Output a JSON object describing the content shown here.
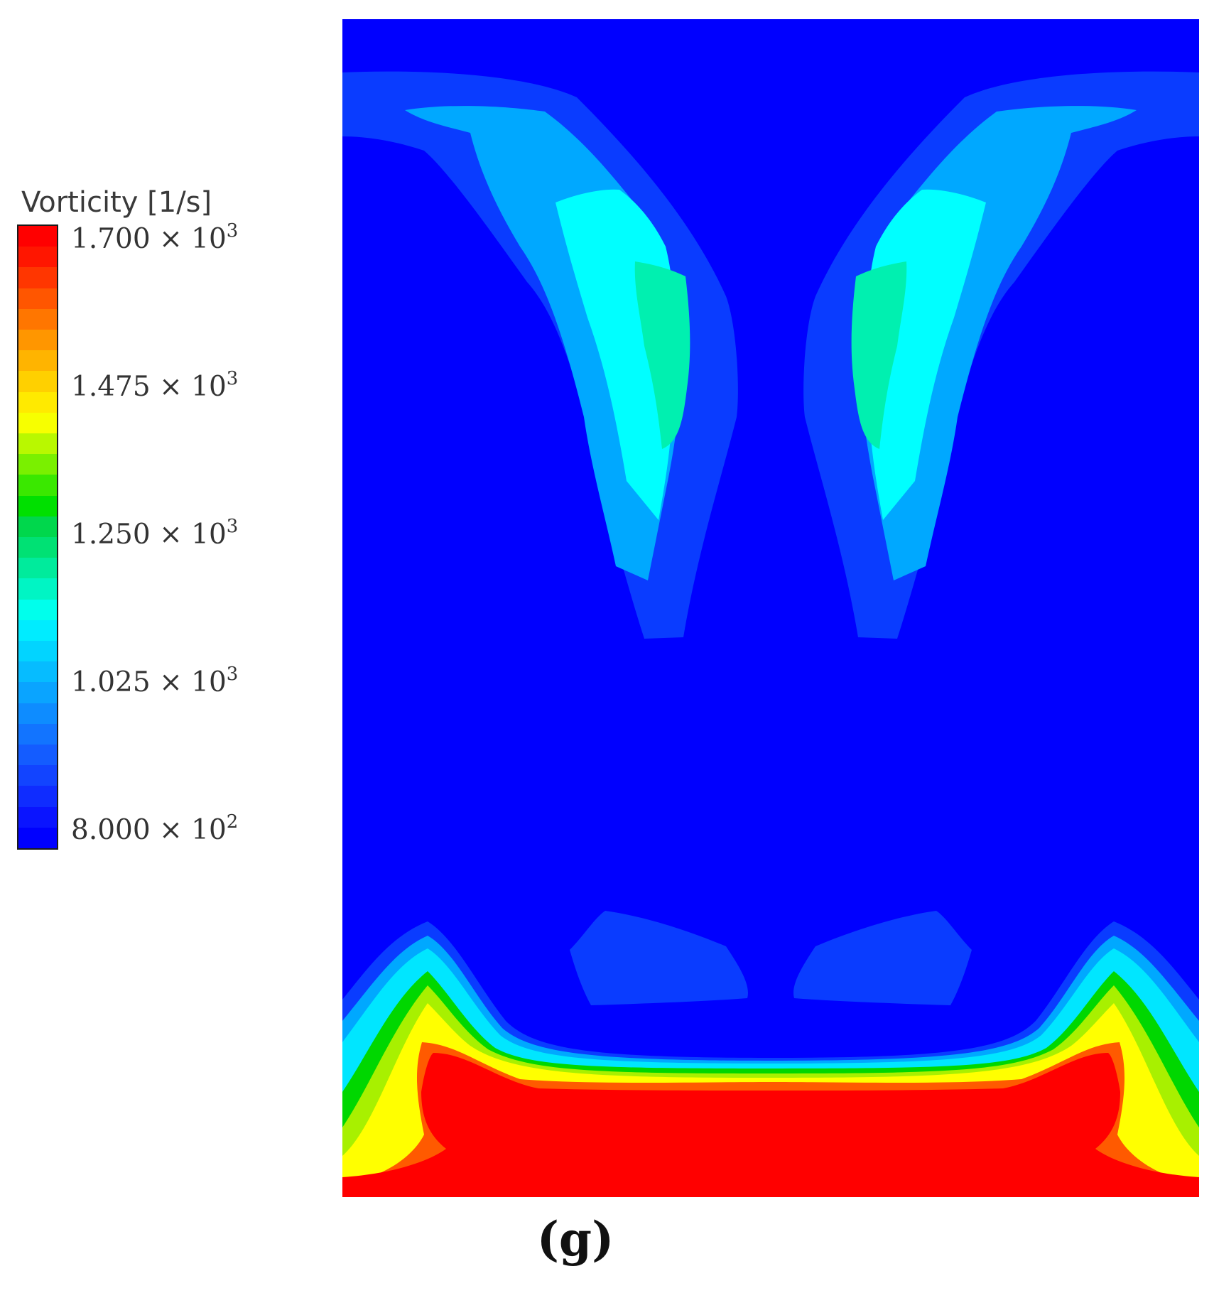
{
  "chart_data": {
    "type": "heatmap",
    "quantity": "Vorticity",
    "colorbar": {
      "title": "Vorticity [1/s]",
      "min": 800,
      "max": 1700,
      "ticks": [
        {
          "mantissa": "1.700",
          "exponent": "3",
          "value": 1700
        },
        {
          "mantissa": "1.475",
          "exponent": "3",
          "value": 1475
        },
        {
          "mantissa": "1.250",
          "exponent": "3",
          "value": 1250
        },
        {
          "mantissa": "1.025",
          "exponent": "3",
          "value": 1025
        },
        {
          "mantissa": "8.000",
          "exponent": "2",
          "value": 800
        }
      ],
      "colors": [
        "#0000ff",
        "#0a14ff",
        "#0f2cff",
        "#1244ff",
        "#145cff",
        "#1274ff",
        "#0e8cff",
        "#0aa4ff",
        "#06bcff",
        "#02d4ff",
        "#00ecff",
        "#00ffec",
        "#00f5c4",
        "#00eb9c",
        "#00e174",
        "#00d74c",
        "#00e000",
        "#3ae800",
        "#7af000",
        "#b9f800",
        "#f7ff00",
        "#ffea00",
        "#ffd000",
        "#ffb400",
        "#ff9600",
        "#ff7600",
        "#ff5600",
        "#ff3600",
        "#ff1600",
        "#ff0000"
      ]
    },
    "levels": {
      "background": "#0000ff",
      "level1": "#0a3cff",
      "level2": "#00a8ff",
      "level3": "#00ffff",
      "level4": "#00f0b0",
      "cyan_band": "#00e6ff",
      "green_band": "#00d700",
      "yellow_green_band": "#a8f000",
      "yellow_band": "#ffff00",
      "orange_band": "#ff5a00",
      "core": "#ff0000"
    }
  },
  "panel_label": "(g)",
  "multiply_sign": "×",
  "base": "10"
}
